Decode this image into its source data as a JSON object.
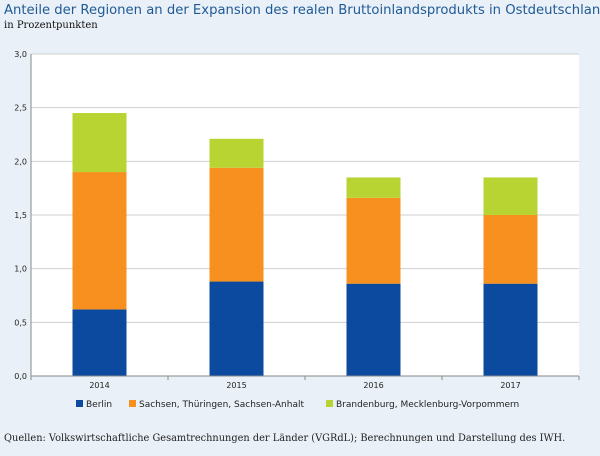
{
  "title": "Anteile der Regionen an der Expansion des realen Bruttoinlandsprodukts in Ostdeutschland",
  "subtitle": "in Prozentpunkten",
  "source": "Quellen: Volkswirtschaftliche Gesamtrechnungen der Länder (VGRdL); Berechnungen und Darstellung des IWH.",
  "chart_data": {
    "type": "bar",
    "stacked": true,
    "categories": [
      "2014",
      "2015",
      "2016",
      "2017"
    ],
    "series": [
      {
        "name": "Berlin",
        "color": "#0b4a9e",
        "values": [
          0.62,
          0.88,
          0.86,
          0.86
        ]
      },
      {
        "name": "Sachsen, Thüringen, Sachsen-Anhalt",
        "color": "#f7901e",
        "values": [
          1.28,
          1.06,
          0.8,
          0.64
        ]
      },
      {
        "name": "Brandenburg, Mecklenburg-Vorpommern",
        "color": "#b7d433",
        "values": [
          0.55,
          0.27,
          0.19,
          0.35
        ]
      }
    ],
    "ylim": [
      0,
      3.0
    ],
    "yticks": [
      "0,0",
      "0,5",
      "1,0",
      "1,5",
      "2,0",
      "2,5",
      "3,0"
    ],
    "grid": true,
    "legend_position": "bottom"
  }
}
